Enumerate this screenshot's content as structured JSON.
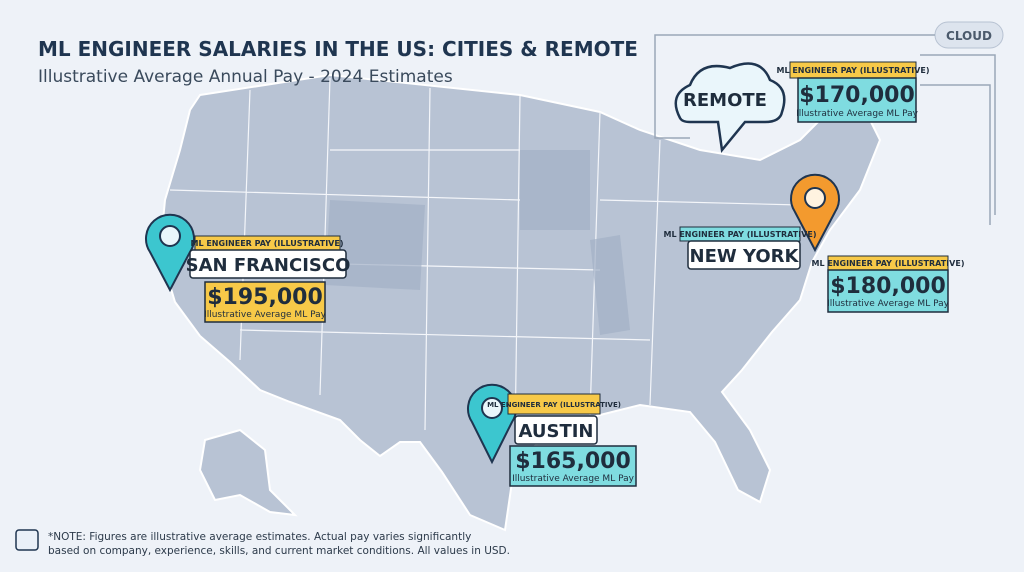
{
  "header": {
    "title": "ML ENGINEER SALARIES IN THE US: CITIES & REMOTE",
    "subtitle": "Illustrative Average Annual Pay - 2024 Estimates"
  },
  "tag": "CLOUD",
  "locations": [
    {
      "name": "REMOTE",
      "pay_label": "ML ENGINEER PAY (ILLUSTRATIVE)",
      "pay": "$170,000",
      "caption": "Illustrative Average ML Pay"
    },
    {
      "name": "SAN FRANCISCO",
      "pay_label": "ML ENGINEER PAY (ILLUSTRATIVE)",
      "pay": "$195,000",
      "caption": "Illustrative Average ML Pay"
    },
    {
      "name": "NEW YORK",
      "pay_label": "ML ENGINEER PAY (ILLUSTRATIVE)",
      "pay": "$180,000",
      "caption": "Illustrative Average ML Pay"
    },
    {
      "name": "AUSTIN",
      "pay_label": "ML ENGINEER PAY (ILLUSTRATIVE)",
      "pay": "$165,000",
      "caption": "Illustrative Average ML Pay"
    }
  ],
  "note": [
    "*NOTE: Figures are illustrative average estimates. Actual pay varies significantly",
    "based on company, experience, skills, and current market conditions. All values in USD."
  ]
}
